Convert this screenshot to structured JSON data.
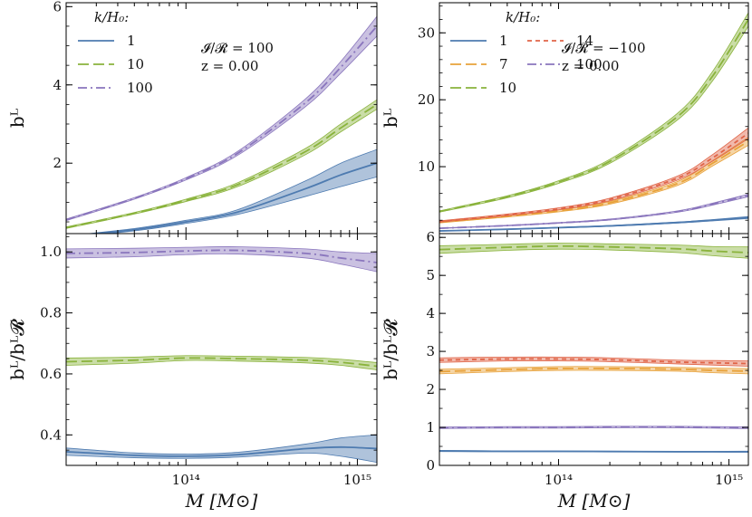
{
  "figure": {
    "xlabel": "M  [M⊙]",
    "xticks": [
      {
        "value": 100000000000000.0,
        "label": "10¹⁴"
      },
      {
        "value": 1000000000000000.0,
        "label": "10¹⁵"
      }
    ],
    "xlim": [
      20000000000000.0,
      1300000000000000.0
    ],
    "xscale": "log"
  },
  "colors": {
    "1": "#4e7bb0",
    "7": "#e8a23a",
    "10": "#8ab33c",
    "14": "#e06447",
    "100": "#8a76bd"
  },
  "chart_data": [
    {
      "id": "top-left",
      "type": "line",
      "ylabel": "bᴸ",
      "ylim": [
        0.2,
        6.1
      ],
      "yticks": [
        2,
        4,
        6
      ],
      "legend_title": "k/H₀:",
      "legend_placement": "top-left",
      "annotation": [
        "𝓘/𝓡 = 100",
        "z = 0.00"
      ],
      "x": [
        20000000000000.0,
        50000000000000.0,
        100000000000000.0,
        200000000000000.0,
        500000000000000.0,
        800000000000000.0,
        1300000000000000.0
      ],
      "series": [
        {
          "name": "1",
          "style": "solid",
          "values": [
            0.12,
            0.3,
            0.5,
            0.75,
            1.35,
            1.7,
            2.0
          ],
          "band": [
            0.02,
            0.03,
            0.04,
            0.06,
            0.2,
            0.3,
            0.35
          ]
        },
        {
          "name": "10",
          "style": "dashed",
          "values": [
            0.35,
            0.72,
            1.05,
            1.45,
            2.3,
            2.9,
            3.5
          ],
          "band": [
            0.02,
            0.02,
            0.03,
            0.05,
            0.08,
            0.1,
            0.12
          ]
        },
        {
          "name": "100",
          "style": "dashdot",
          "values": [
            0.55,
            1.1,
            1.6,
            2.25,
            3.55,
            4.45,
            5.5
          ],
          "band": [
            0.02,
            0.02,
            0.03,
            0.05,
            0.1,
            0.15,
            0.25
          ]
        }
      ]
    },
    {
      "id": "top-right",
      "type": "line",
      "ylabel": "bᴸ",
      "ylim": [
        0,
        34.5
      ],
      "yticks": [
        10,
        20,
        30
      ],
      "legend_title": "k/H₀:",
      "legend_placement": "top-left",
      "annotation": [
        "𝓘/𝓡 = −100",
        "z = 0.00"
      ],
      "x": [
        20000000000000.0,
        50000000000000.0,
        100000000000000.0,
        200000000000000.0,
        500000000000000.0,
        800000000000000.0,
        1300000000000000.0
      ],
      "series": [
        {
          "name": "1",
          "style": "solid",
          "values": [
            0.4,
            0.65,
            0.9,
            1.15,
            1.65,
            2.0,
            2.4
          ],
          "band": [
            0.03,
            0.04,
            0.05,
            0.06,
            0.08,
            0.1,
            0.15
          ]
        },
        {
          "name": "7",
          "style": "dashed",
          "values": [
            1.7,
            2.6,
            3.4,
            4.6,
            7.5,
            10.5,
            13.8
          ],
          "band": [
            0.1,
            0.12,
            0.15,
            0.2,
            0.3,
            0.4,
            0.6
          ]
        },
        {
          "name": "10",
          "style": "dashed",
          "values": [
            3.3,
            5.5,
            7.7,
            10.8,
            17.5,
            23.5,
            32.0
          ],
          "band": [
            0.1,
            0.15,
            0.2,
            0.3,
            0.5,
            0.7,
            1.0
          ]
        },
        {
          "name": "14",
          "style": "dotted",
          "values": [
            1.8,
            2.8,
            3.7,
            5.1,
            8.3,
            11.3,
            15.0
          ],
          "band": [
            0.1,
            0.12,
            0.15,
            0.2,
            0.3,
            0.5,
            0.8
          ]
        },
        {
          "name": "100",
          "style": "dashdot",
          "values": [
            0.8,
            1.2,
            1.6,
            2.1,
            3.3,
            4.4,
            5.7
          ],
          "band": [
            0.03,
            0.04,
            0.05,
            0.07,
            0.1,
            0.15,
            0.2
          ]
        }
      ]
    },
    {
      "id": "bottom-left",
      "type": "line",
      "ylabel": "bᴸ/bᴸ𝓡",
      "ylim": [
        0.3,
        1.06
      ],
      "yticks": [
        0.4,
        0.6,
        0.8,
        1.0
      ],
      "x": [
        20000000000000.0,
        50000000000000.0,
        100000000000000.0,
        200000000000000.0,
        500000000000000.0,
        800000000000000.0,
        1300000000000000.0
      ],
      "series": [
        {
          "name": "1",
          "style": "solid",
          "values": [
            0.345,
            0.333,
            0.33,
            0.335,
            0.355,
            0.36,
            0.355
          ],
          "band": [
            0.012,
            0.008,
            0.007,
            0.008,
            0.015,
            0.03,
            0.045
          ]
        },
        {
          "name": "10",
          "style": "dashed",
          "values": [
            0.64,
            0.645,
            0.652,
            0.65,
            0.645,
            0.638,
            0.625
          ],
          "band": [
            0.012,
            0.01,
            0.008,
            0.008,
            0.009,
            0.01,
            0.012
          ]
        },
        {
          "name": "100",
          "style": "dashdot",
          "values": [
            0.995,
            0.998,
            1.003,
            1.005,
            0.995,
            0.98,
            0.965
          ],
          "band": [
            0.015,
            0.014,
            0.012,
            0.012,
            0.015,
            0.02,
            0.03
          ]
        }
      ]
    },
    {
      "id": "bottom-right",
      "type": "line",
      "ylabel": "bᴸ/bᴸ𝓡",
      "ylim": [
        0,
        6.1
      ],
      "yticks": [
        0,
        1,
        2,
        3,
        4,
        5,
        6
      ],
      "x": [
        20000000000000.0,
        50000000000000.0,
        100000000000000.0,
        200000000000000.0,
        500000000000000.0,
        800000000000000.0,
        1300000000000000.0
      ],
      "series": [
        {
          "name": "1",
          "style": "solid",
          "values": [
            0.38,
            0.37,
            0.37,
            0.365,
            0.36,
            0.36,
            0.36
          ],
          "band": [
            0.015,
            0.01,
            0.01,
            0.01,
            0.01,
            0.012,
            0.015
          ]
        },
        {
          "name": "7",
          "style": "dashed",
          "values": [
            2.47,
            2.52,
            2.55,
            2.55,
            2.53,
            2.5,
            2.48
          ],
          "band": [
            0.06,
            0.05,
            0.05,
            0.05,
            0.05,
            0.06,
            0.07
          ]
        },
        {
          "name": "10",
          "style": "dashed",
          "values": [
            5.68,
            5.74,
            5.77,
            5.75,
            5.7,
            5.64,
            5.6
          ],
          "band": [
            0.1,
            0.08,
            0.08,
            0.08,
            0.1,
            0.12,
            0.15
          ]
        },
        {
          "name": "14",
          "style": "dotted",
          "values": [
            2.77,
            2.8,
            2.8,
            2.78,
            2.72,
            2.7,
            2.68
          ],
          "band": [
            0.06,
            0.05,
            0.05,
            0.05,
            0.05,
            0.06,
            0.07
          ]
        },
        {
          "name": "100",
          "style": "dashdot",
          "values": [
            0.99,
            1.0,
            1.0,
            1.01,
            1.01,
            1.0,
            0.99
          ],
          "band": [
            0.02,
            0.02,
            0.02,
            0.02,
            0.02,
            0.02,
            0.025
          ]
        }
      ]
    }
  ]
}
